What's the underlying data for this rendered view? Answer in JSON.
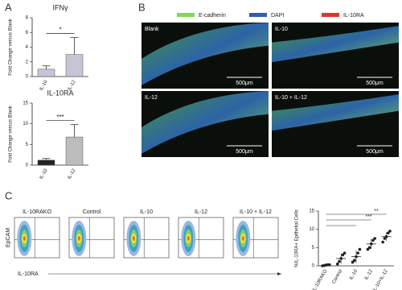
{
  "figure": {
    "panel_labels": [
      "A",
      "B",
      "C"
    ],
    "microscopy": {
      "legend": [
        {
          "name": "E-cadherin",
          "color": "#7ed957"
        },
        {
          "name": "DAPI",
          "color": "#2f5fb3"
        },
        {
          "name": "IL-10RA",
          "color": "#e0352b"
        }
      ],
      "images": [
        "Blank",
        "IL-10",
        "IL-12",
        "IL-10 + IL-12"
      ],
      "scale_bar": "500μm"
    },
    "flow": {
      "samples": [
        "IL-10RAKO",
        "Control",
        "IL-10",
        "IL-12",
        "IL-10 + IL-12"
      ],
      "y_axis": "EpCAM",
      "x_axis": "IL-10RA"
    }
  },
  "chart_data": [
    {
      "type": "bar",
      "title": "IFNγ",
      "y_label": "Fold Change versus Blank",
      "categories": [
        "IL-10",
        "IL-12"
      ],
      "values": [
        1.0,
        3.0
      ],
      "errors": [
        0.45,
        2.3
      ],
      "colors": [
        "#c9c3d6",
        "#c9c3d6"
      ],
      "ylim": [
        0,
        8
      ],
      "yticks": [
        0,
        2,
        4,
        6,
        8
      ],
      "significance": "*"
    },
    {
      "type": "bar",
      "title": "IL-10RA",
      "y_label": "Fold Change versus Blank",
      "categories": [
        "IL-10",
        "IL-12"
      ],
      "values": [
        1.2,
        6.8
      ],
      "errors": [
        0.4,
        3.0
      ],
      "colors": [
        "#222222",
        "#bdbdbd"
      ],
      "ylim": [
        0,
        15
      ],
      "yticks": [
        0,
        5,
        10,
        15
      ],
      "significance": "***"
    },
    {
      "type": "dot",
      "y_label": "%IL-10RA+ Epithelial Cells",
      "categories": [
        "IL-10RAKO",
        "Control",
        "IL-10",
        "IL-12",
        "IL-10+IL-12"
      ],
      "values": [
        0.2,
        2.0,
        2.5,
        6.0,
        8.0
      ],
      "errors": [
        0.2,
        1.4,
        1.7,
        1.4,
        1.2
      ],
      "points": [
        [
          0.0,
          0.1,
          0.2,
          0.3,
          0.3
        ],
        [
          0.5,
          1.2,
          2.0,
          3.0,
          3.5
        ],
        [
          1.0,
          1.5,
          2.5,
          3.5,
          4.5
        ],
        [
          4.5,
          5.0,
          6.0,
          7.0,
          7.5
        ],
        [
          6.5,
          7.5,
          8.0,
          9.0,
          9.5
        ]
      ],
      "color": "#222222",
      "ylim": [
        0,
        15
      ],
      "yticks": [
        0,
        5,
        10,
        15
      ],
      "significance": [
        "**",
        "***"
      ]
    }
  ]
}
